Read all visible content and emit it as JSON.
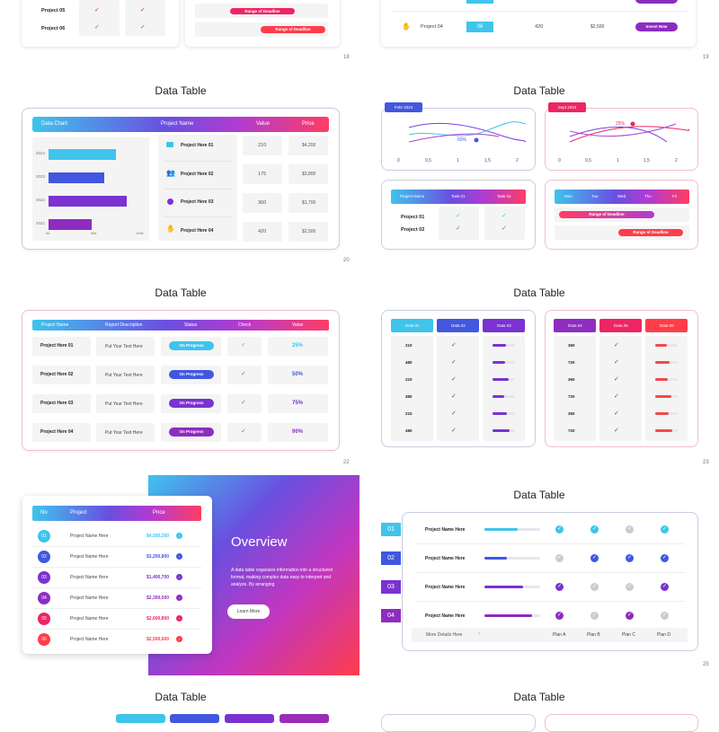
{
  "slide18_top": {
    "rows": [
      {
        "name": "Project 05"
      },
      {
        "name": "Project 06"
      }
    ],
    "pills": [
      "Range of Deadline",
      "Range of Deadline"
    ],
    "page": "18"
  },
  "slide19_top": {
    "row": {
      "name": "Project 04",
      "value": "06",
      "num": "420",
      "price": "$2,500",
      "button": "Invest Now"
    },
    "page": "19"
  },
  "slide20": {
    "title": "Data Table",
    "header": {
      "c1": "Data Chart",
      "c2": "Project Name",
      "c3": "Value",
      "c4": "Price"
    },
    "chart": {
      "type": "bar",
      "categories": [
        "2024",
        "2023",
        "2022",
        "2021"
      ],
      "values": [
        75,
        62,
        87,
        48
      ],
      "ticks": [
        "0k",
        "50k",
        "100k"
      ],
      "colors": [
        "#3fc4ec",
        "#4257e0",
        "#7a32d2",
        "#8e2cc0"
      ]
    },
    "rows": [
      {
        "name": "Project Here 01",
        "value": "210",
        "price": "$4,200"
      },
      {
        "name": "Project Here 02",
        "value": "175",
        "price": "$3,800"
      },
      {
        "name": "Project Here 03",
        "value": "360",
        "price": "$1,700"
      },
      {
        "name": "Project Here 04",
        "value": "420",
        "price": "$2,500"
      }
    ],
    "page": "20"
  },
  "slide21": {
    "title": "Data Table",
    "chart1": {
      "tag": "Febr 2024",
      "pct": "60%",
      "ticks": [
        "0",
        "0,5",
        "1",
        "1,5",
        "2"
      ]
    },
    "chart2": {
      "tag": "Sept 2024",
      "pct": "25%",
      "ticks": [
        "0",
        "0,5",
        "1",
        "1,5",
        "2"
      ]
    },
    "table": {
      "h1": "Project Name",
      "h2": "Task 01",
      "h3": "Task 02",
      "rows": [
        "Project 01",
        "Project 02"
      ]
    },
    "days": [
      "Mon",
      "Tue",
      "Wed",
      "Thu",
      "Fri"
    ],
    "pills": [
      "Range of Deadline",
      "Range of Deadline"
    ],
    "page": "21"
  },
  "slide22": {
    "title": "Data Table",
    "header": {
      "c1": "Project Name",
      "c2": "Report Description",
      "c3": "Status",
      "c4": "Check",
      "c5": "Value"
    },
    "rows": [
      {
        "name": "Project Here 01",
        "desc": "Put Your Text Here",
        "status": "On Progress",
        "value": "25%"
      },
      {
        "name": "Project Here 02",
        "desc": "Put Your Text Here",
        "status": "On Progress",
        "value": "50%"
      },
      {
        "name": "Project Here 03",
        "desc": "Put Your Text Here",
        "status": "On Progress",
        "value": "75%"
      },
      {
        "name": "Project Here 04",
        "desc": "Put Your Text Here",
        "status": "On Progress",
        "value": "90%"
      }
    ],
    "page": "22"
  },
  "slide23": {
    "title": "Data Table",
    "left": {
      "h": [
        "Data 01",
        "Data 02",
        "Data 03"
      ],
      "vals": [
        "210",
        "480",
        "210",
        "480",
        "210",
        "480"
      ]
    },
    "right": {
      "h": [
        "Data 04",
        "Data 05",
        "Data 06"
      ],
      "vals": [
        "360",
        "720",
        "360",
        "720",
        "360",
        "720"
      ]
    },
    "page": "23"
  },
  "slide24": {
    "header": {
      "no": "No",
      "project": "Project",
      "price": "Price"
    },
    "rows": [
      {
        "no": "01",
        "name": "Project Name Here",
        "price": "$4,500,200"
      },
      {
        "no": "02",
        "name": "Project Name Here",
        "price": "$3,200,800"
      },
      {
        "no": "03",
        "name": "Project Name Here",
        "price": "$1,400,700"
      },
      {
        "no": "04",
        "name": "Project Name Here",
        "price": "$2,300,500"
      },
      {
        "no": "05",
        "name": "Project Name Here",
        "price": "$2,600,800"
      },
      {
        "no": "06",
        "name": "Project Name Here",
        "price": "$2,500,600"
      }
    ],
    "overview": "Overview",
    "text": "A data table organizes information into a structured format, making complex data easy to interpret and analyze. By arranging",
    "button": "Learn More"
  },
  "slide25": {
    "title": "Data Table",
    "nums": [
      "01",
      "02",
      "03",
      "04"
    ],
    "rows": [
      "Project Name Here",
      "Project Name Here",
      "Project Name Here",
      "Project Name Here"
    ],
    "footer": {
      "more": "More Details Here",
      "arrow": "›",
      "plans": [
        "Plan A",
        "Plan B",
        "Plan C",
        "Plan D"
      ]
    },
    "page": "25"
  },
  "bottom": {
    "left": "Data Table",
    "right": "Data Table"
  }
}
